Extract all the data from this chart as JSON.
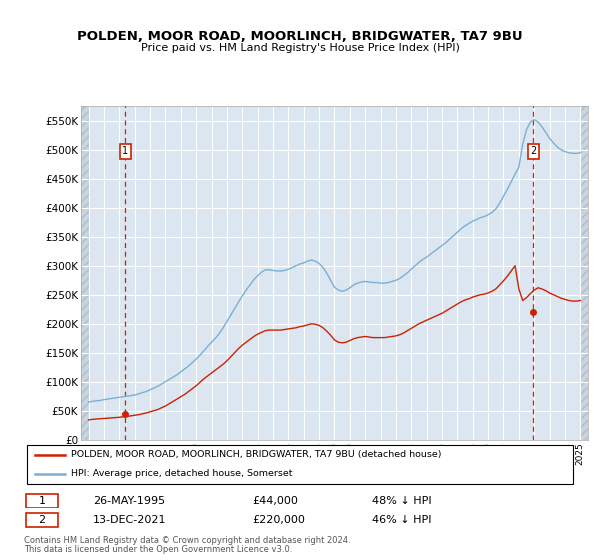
{
  "title": "POLDEN, MOOR ROAD, MOORLINCH, BRIDGWATER, TA7 9BU",
  "subtitle": "Price paid vs. HM Land Registry's House Price Index (HPI)",
  "hpi_color": "#7bafd4",
  "price_color": "#cc2200",
  "bg_color": "#dce6f1",
  "hatch_color": "#c8d4e0",
  "grid_color": "#ffffff",
  "ylim": [
    0,
    575000
  ],
  "yticks": [
    0,
    50000,
    100000,
    150000,
    200000,
    250000,
    300000,
    350000,
    400000,
    450000,
    500000,
    550000
  ],
  "xlim_start": 1992.5,
  "xlim_end": 2025.5,
  "transaction1_x": 1995.39,
  "transaction1_y": 44000,
  "transaction2_x": 2021.95,
  "transaction2_y": 220000,
  "legend_label1": "POLDEN, MOOR ROAD, MOORLINCH, BRIDGWATER, TA7 9BU (detached house)",
  "legend_label2": "HPI: Average price, detached house, Somerset",
  "footer1": "Contains HM Land Registry data © Crown copyright and database right 2024.",
  "footer2": "This data is licensed under the Open Government Licence v3.0.",
  "hpi_x": [
    1993.0,
    1993.25,
    1993.5,
    1993.75,
    1994.0,
    1994.25,
    1994.5,
    1994.75,
    1995.0,
    1995.25,
    1995.5,
    1995.75,
    1996.0,
    1996.25,
    1996.5,
    1996.75,
    1997.0,
    1997.25,
    1997.5,
    1997.75,
    1998.0,
    1998.25,
    1998.5,
    1998.75,
    1999.0,
    1999.25,
    1999.5,
    1999.75,
    2000.0,
    2000.25,
    2000.5,
    2000.75,
    2001.0,
    2001.25,
    2001.5,
    2001.75,
    2002.0,
    2002.25,
    2002.5,
    2002.75,
    2003.0,
    2003.25,
    2003.5,
    2003.75,
    2004.0,
    2004.25,
    2004.5,
    2004.75,
    2005.0,
    2005.25,
    2005.5,
    2005.75,
    2006.0,
    2006.25,
    2006.5,
    2006.75,
    2007.0,
    2007.25,
    2007.5,
    2007.75,
    2008.0,
    2008.25,
    2008.5,
    2008.75,
    2009.0,
    2009.25,
    2009.5,
    2009.75,
    2010.0,
    2010.25,
    2010.5,
    2010.75,
    2011.0,
    2011.25,
    2011.5,
    2011.75,
    2012.0,
    2012.25,
    2012.5,
    2012.75,
    2013.0,
    2013.25,
    2013.5,
    2013.75,
    2014.0,
    2014.25,
    2014.5,
    2014.75,
    2015.0,
    2015.25,
    2015.5,
    2015.75,
    2016.0,
    2016.25,
    2016.5,
    2016.75,
    2017.0,
    2017.25,
    2017.5,
    2017.75,
    2018.0,
    2018.25,
    2018.5,
    2018.75,
    2019.0,
    2019.25,
    2019.5,
    2019.75,
    2020.0,
    2020.25,
    2020.5,
    2020.75,
    2021.0,
    2021.25,
    2021.5,
    2021.75,
    2022.0,
    2022.25,
    2022.5,
    2022.75,
    2023.0,
    2023.25,
    2023.5,
    2023.75,
    2024.0,
    2024.25,
    2024.5,
    2024.75,
    2025.0
  ],
  "hpi_y": [
    65000,
    66000,
    67000,
    67500,
    69000,
    70000,
    71000,
    72000,
    73000,
    74000,
    75000,
    76000,
    77000,
    79000,
    81000,
    83000,
    86000,
    89000,
    92000,
    96000,
    100000,
    104000,
    108000,
    112000,
    117000,
    122000,
    127000,
    133000,
    139000,
    146000,
    153000,
    161000,
    168000,
    175000,
    183000,
    193000,
    204000,
    215000,
    226000,
    237000,
    248000,
    258000,
    267000,
    276000,
    283000,
    289000,
    293000,
    293000,
    292000,
    291000,
    291000,
    292000,
    294000,
    297000,
    300000,
    303000,
    305000,
    308000,
    310000,
    308000,
    304000,
    297000,
    287000,
    275000,
    263000,
    258000,
    256000,
    258000,
    262000,
    267000,
    270000,
    272000,
    273000,
    272000,
    271000,
    271000,
    270000,
    270000,
    271000,
    273000,
    275000,
    278000,
    283000,
    288000,
    294000,
    300000,
    306000,
    311000,
    315000,
    320000,
    325000,
    330000,
    335000,
    340000,
    346000,
    352000,
    358000,
    364000,
    369000,
    373000,
    377000,
    380000,
    383000,
    385000,
    388000,
    392000,
    398000,
    408000,
    420000,
    432000,
    445000,
    458000,
    470000,
    510000,
    535000,
    548000,
    552000,
    548000,
    540000,
    530000,
    520000,
    512000,
    505000,
    500000,
    497000,
    495000,
    494000,
    494000,
    495000
  ],
  "red_x": [
    1993.0,
    1993.25,
    1993.5,
    1993.75,
    1994.0,
    1994.25,
    1994.5,
    1994.75,
    1995.0,
    1995.25,
    1995.5,
    1995.75,
    1996.0,
    1996.25,
    1996.5,
    1996.75,
    1997.0,
    1997.25,
    1997.5,
    1997.75,
    1998.0,
    1998.25,
    1998.5,
    1998.75,
    1999.0,
    1999.25,
    1999.5,
    1999.75,
    2000.0,
    2000.25,
    2000.5,
    2000.75,
    2001.0,
    2001.25,
    2001.5,
    2001.75,
    2002.0,
    2002.25,
    2002.5,
    2002.75,
    2003.0,
    2003.25,
    2003.5,
    2003.75,
    2004.0,
    2004.25,
    2004.5,
    2004.75,
    2005.0,
    2005.25,
    2005.5,
    2005.75,
    2006.0,
    2006.25,
    2006.5,
    2006.75,
    2007.0,
    2007.25,
    2007.5,
    2007.75,
    2008.0,
    2008.25,
    2008.5,
    2008.75,
    2009.0,
    2009.25,
    2009.5,
    2009.75,
    2010.0,
    2010.25,
    2010.5,
    2010.75,
    2011.0,
    2011.25,
    2011.5,
    2011.75,
    2012.0,
    2012.25,
    2012.5,
    2012.75,
    2013.0,
    2013.25,
    2013.5,
    2013.75,
    2014.0,
    2014.25,
    2014.5,
    2014.75,
    2015.0,
    2015.25,
    2015.5,
    2015.75,
    2016.0,
    2016.25,
    2016.5,
    2016.75,
    2017.0,
    2017.25,
    2017.5,
    2017.75,
    2018.0,
    2018.25,
    2018.5,
    2018.75,
    2019.0,
    2019.25,
    2019.5,
    2019.75,
    2020.0,
    2020.25,
    2020.5,
    2020.75,
    2021.0,
    2021.25,
    2021.5,
    2021.75,
    2022.0,
    2022.25,
    2022.5,
    2022.75,
    2023.0,
    2023.25,
    2023.5,
    2023.75,
    2024.0,
    2024.25,
    2024.5,
    2024.75,
    2025.0
  ],
  "red_y": [
    34000,
    35000,
    35500,
    36000,
    36500,
    37000,
    37500,
    38000,
    38500,
    39500,
    40000,
    41000,
    42000,
    43000,
    44500,
    46000,
    48000,
    50000,
    52000,
    55000,
    58000,
    62000,
    66000,
    70000,
    74000,
    78000,
    83000,
    88000,
    93000,
    99000,
    105000,
    110000,
    115000,
    120000,
    125000,
    130000,
    136000,
    143000,
    150000,
    157000,
    163000,
    168000,
    173000,
    178000,
    182000,
    185000,
    188000,
    189000,
    189000,
    189000,
    189000,
    190000,
    191000,
    192000,
    193000,
    195000,
    196000,
    198000,
    200000,
    199000,
    197000,
    193000,
    187000,
    180000,
    172000,
    168000,
    167000,
    168000,
    171000,
    174000,
    176000,
    177000,
    178000,
    177000,
    176000,
    176000,
    176000,
    176000,
    177000,
    178000,
    179000,
    181000,
    184000,
    188000,
    192000,
    196000,
    200000,
    203000,
    206000,
    209000,
    212000,
    215000,
    218000,
    222000,
    226000,
    230000,
    234000,
    238000,
    241000,
    243000,
    246000,
    248000,
    250000,
    251000,
    253000,
    256000,
    260000,
    267000,
    274000,
    282000,
    291000,
    300000,
    260000,
    240000,
    245000,
    252000,
    258000,
    262000,
    260000,
    257000,
    253000,
    250000,
    247000,
    244000,
    242000,
    240000,
    239000,
    239000,
    240000
  ]
}
